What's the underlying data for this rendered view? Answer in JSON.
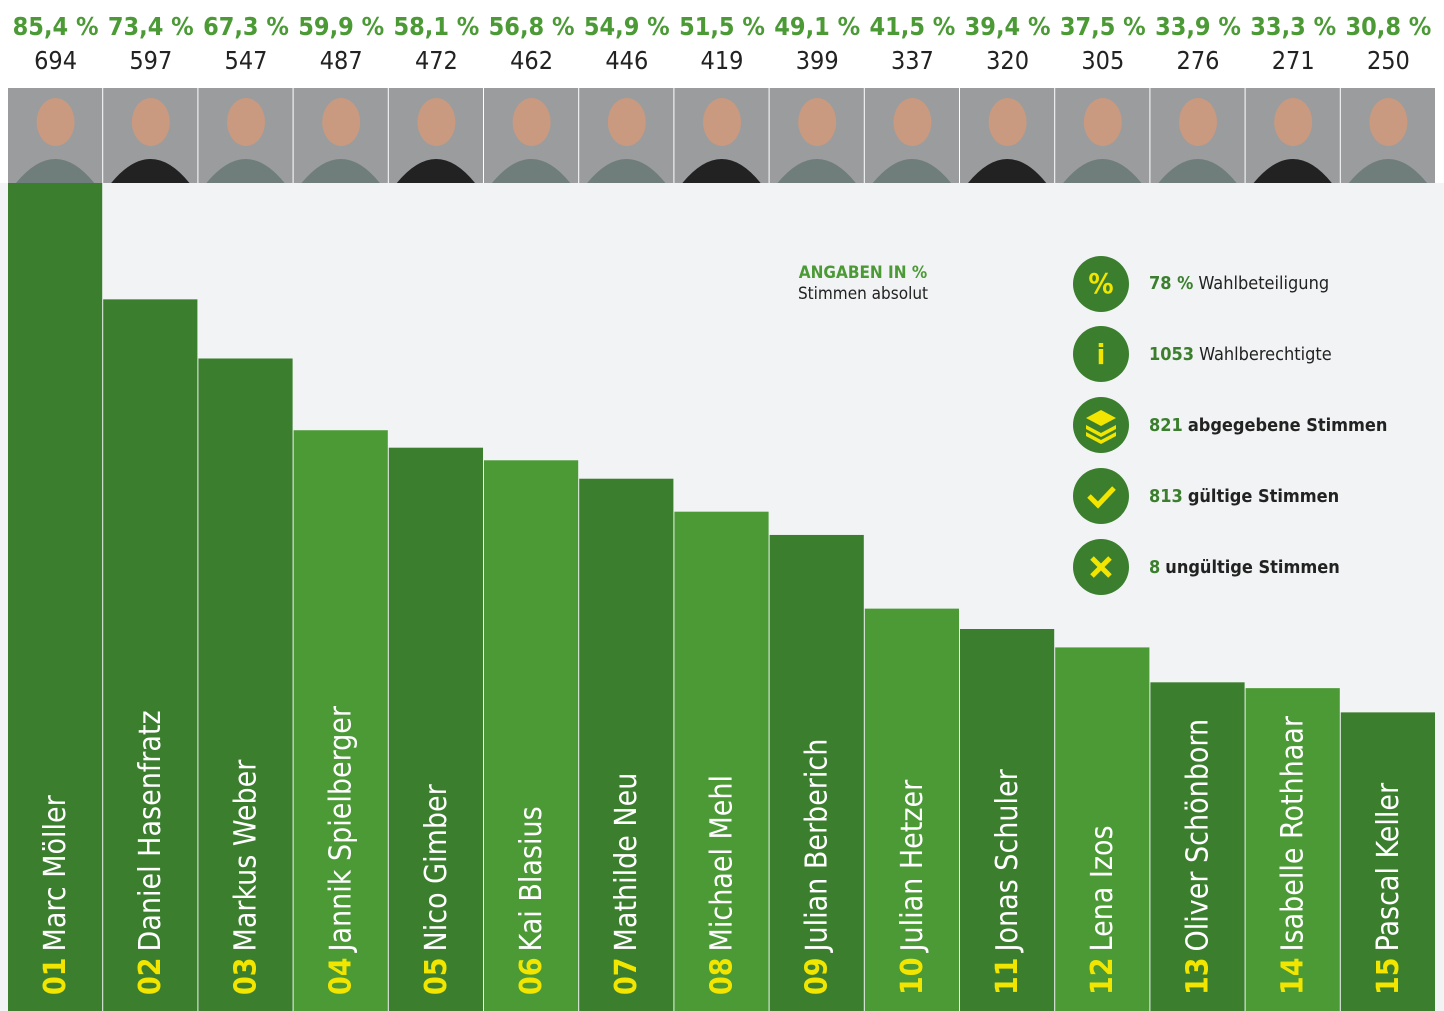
{
  "chart_data": {
    "type": "bar",
    "categories": [
      "Marc Möller",
      "Daniel Hasenfratz",
      "Markus Weber",
      "Jannik Spielberger",
      "Nico Gimber",
      "Kai Blasius",
      "Mathilde Neu",
      "Michael Mehl",
      "Julian Berberich",
      "Julian Hetzer",
      "Jonas Schuler",
      "Lena Izos",
      "Oliver Schönborn",
      "Isabelle Rothhaar",
      "Pascal Keller"
    ],
    "ranks": [
      "01",
      "02",
      "03",
      "04",
      "05",
      "06",
      "07",
      "08",
      "09",
      "10",
      "11",
      "12",
      "13",
      "14",
      "15"
    ],
    "values": [
      85.4,
      73.4,
      67.3,
      59.9,
      58.1,
      56.8,
      54.9,
      51.5,
      49.1,
      41.5,
      39.4,
      37.5,
      33.9,
      33.3,
      30.8
    ],
    "value_labels": [
      "85,4 %",
      "73,4 %",
      "67,3 %",
      "59,9 %",
      "58,1 %",
      "56,8 %",
      "54,9 %",
      "51,5 %",
      "49,1 %",
      "41,5 %",
      "39,4 %",
      "37,5 %",
      "33,9 %",
      "33,3 %",
      "30,8 %"
    ],
    "votes": [
      694,
      597,
      547,
      487,
      472,
      462,
      446,
      419,
      399,
      337,
      320,
      305,
      276,
      271,
      250
    ],
    "colors": [
      "#3b7f2e",
      "#3b7f2e",
      "#3b7f2e",
      "#4b9a36",
      "#3b7f2e",
      "#4b9a36",
      "#3b7f2e",
      "#4b9a36",
      "#3b7f2e",
      "#4b9a36",
      "#3b7f2e",
      "#4b9a36",
      "#3b7f2e",
      "#4b9a36",
      "#3b7f2e"
    ],
    "legend": {
      "title": "ANGABEN IN %",
      "subtitle": "Stimmen absolut"
    },
    "stats": [
      {
        "value": 78,
        "value_label": "78 %",
        "label": "Wahlbeteiligung"
      },
      {
        "value": 1053,
        "label": "Wahlberechtigte"
      },
      {
        "value": 821,
        "label": "abgegebene Stimmen"
      },
      {
        "value": 813,
        "label": "gültige Stimmen"
      },
      {
        "value": 8,
        "label": "ungültige Stimmen"
      }
    ]
  }
}
